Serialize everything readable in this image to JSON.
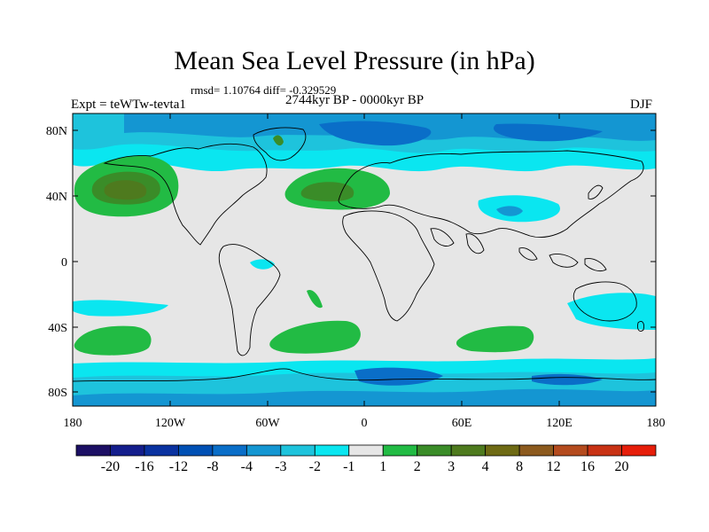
{
  "title": "Mean Sea Level Pressure (in hPa)",
  "stats": "rmsd= 1.10764  diff= -0.329529",
  "experiment": "Expt = teWTw-tevta1",
  "period": "2744kyr BP - 0000kyr BP",
  "season": "DJF",
  "lat_ticks": [
    "80N",
    "40N",
    "0",
    "40S",
    "80S"
  ],
  "lon_ticks": [
    "180",
    "120W",
    "60W",
    "0",
    "60E",
    "120E",
    "180"
  ],
  "colorbar": {
    "colors": [
      "#1c0f64",
      "#141e8c",
      "#0a32a0",
      "#0050b4",
      "#0a6ec8",
      "#1496d2",
      "#1ec3dc",
      "#0ae6f0",
      "#e6e6e6",
      "#22bb44",
      "#3a8c28",
      "#4e7a1e",
      "#6e6a14",
      "#8c5a1e",
      "#b44b1e",
      "#c83214",
      "#e61e0a"
    ],
    "labels": [
      "-20",
      "-16",
      "-12",
      "-8",
      "-4",
      "-3",
      "-2",
      "-1",
      "1",
      "2",
      "3",
      "4",
      "8",
      "12",
      "16",
      "20"
    ]
  }
}
